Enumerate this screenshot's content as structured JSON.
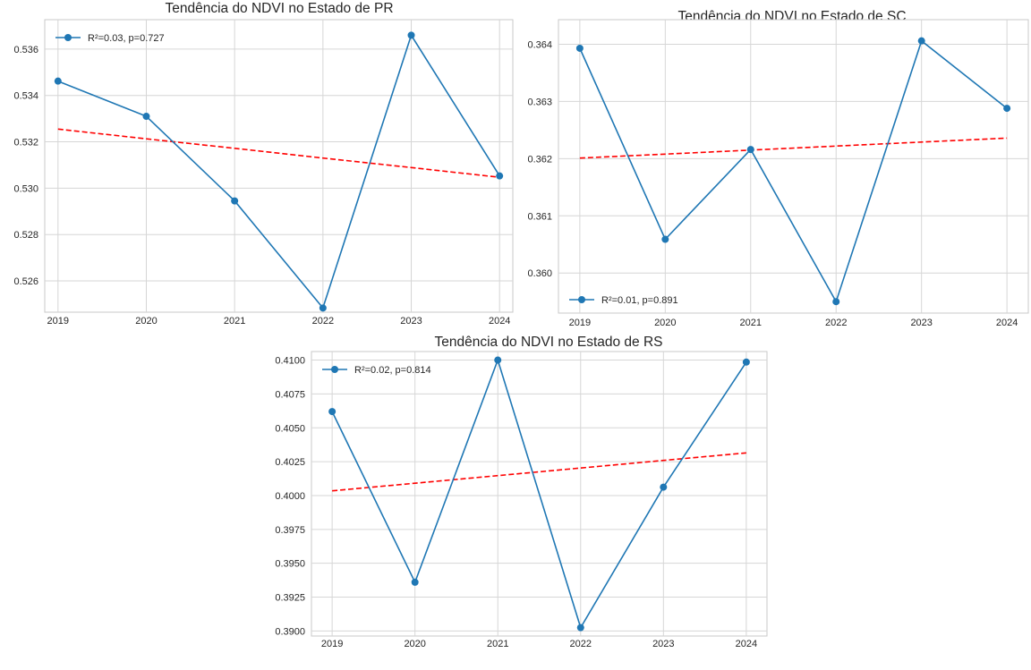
{
  "colors": {
    "series": "#1f77b4",
    "trend": "#ff0000"
  },
  "chart_data": [
    {
      "type": "line",
      "title": "Tendência do NDVI no Estado de PR",
      "x": [
        2019,
        2020,
        2021,
        2022,
        2023,
        2024
      ],
      "series": [
        {
          "name": "R²=0.03, p=0.727",
          "values": [
            0.53462,
            0.5331,
            0.52945,
            0.52483,
            0.5366,
            0.53053
          ],
          "style": "solid-markers"
        },
        {
          "values": [
            0.53255,
            0.53213,
            0.53172,
            0.5313,
            0.53089,
            0.53047
          ],
          "style": "dashed-trend"
        }
      ],
      "xlim": [
        2018.85,
        2024.15
      ],
      "ylim": [
        0.52465,
        0.53727
      ],
      "yticks": [
        0.526,
        0.528,
        0.53,
        0.532,
        0.534,
        0.536
      ],
      "ytick_labels": [
        "0.526",
        "0.528",
        "0.530",
        "0.532",
        "0.534",
        "0.536"
      ],
      "xtick_labels": [
        "2019",
        "2020",
        "2021",
        "2022",
        "2023",
        "2024"
      ],
      "legend": "upper left",
      "grid": true
    },
    {
      "type": "line",
      "title": "Tendência do NDVI no Estado de SC",
      "x": [
        2019,
        2020,
        2021,
        2022,
        2023,
        2024
      ],
      "series": [
        {
          "name": "R²=0.01, p=0.891",
          "values": [
            0.36393,
            0.36059,
            0.36216,
            0.3595,
            0.36406,
            0.36288
          ],
          "style": "solid-markers"
        },
        {
          "values": [
            0.36201,
            0.36208,
            0.36215,
            0.36222,
            0.36229,
            0.36236
          ],
          "style": "dashed-trend"
        }
      ],
      "xlim": [
        2018.75,
        2024.25
      ],
      "ylim": [
        0.3593,
        0.36443
      ],
      "yticks": [
        0.36,
        0.361,
        0.362,
        0.363,
        0.364
      ],
      "ytick_labels": [
        "0.360",
        "0.361",
        "0.362",
        "0.363",
        "0.364"
      ],
      "xtick_labels": [
        "2019",
        "2020",
        "2021",
        "2022",
        "2023",
        "2024"
      ],
      "legend": "lower left",
      "grid": true
    },
    {
      "type": "line",
      "title": "Tendência do NDVI no Estado de RS",
      "x": [
        2019,
        2020,
        2021,
        2022,
        2023,
        2024
      ],
      "series": [
        {
          "name": "R²=0.02, p=0.814",
          "values": [
            0.4062,
            0.3936,
            0.41,
            0.39025,
            0.40062,
            0.40985
          ],
          "style": "solid-markers"
        },
        {
          "values": [
            0.40035,
            0.40091,
            0.40147,
            0.40203,
            0.40259,
            0.40315
          ],
          "style": "dashed-trend"
        }
      ],
      "xlim": [
        2018.75,
        2024.25
      ],
      "ylim": [
        0.38963,
        0.41063
      ],
      "yticks": [
        0.39,
        0.3925,
        0.395,
        0.3975,
        0.4,
        0.4025,
        0.405,
        0.4075,
        0.41
      ],
      "ytick_labels": [
        "0.3900",
        "0.3925",
        "0.3950",
        "0.3975",
        "0.4000",
        "0.4025",
        "0.4050",
        "0.4075",
        "0.4100"
      ],
      "xtick_labels": [
        "2019",
        "2020",
        "2021",
        "2022",
        "2023",
        "2024"
      ],
      "legend": "upper left",
      "grid": true
    }
  ]
}
